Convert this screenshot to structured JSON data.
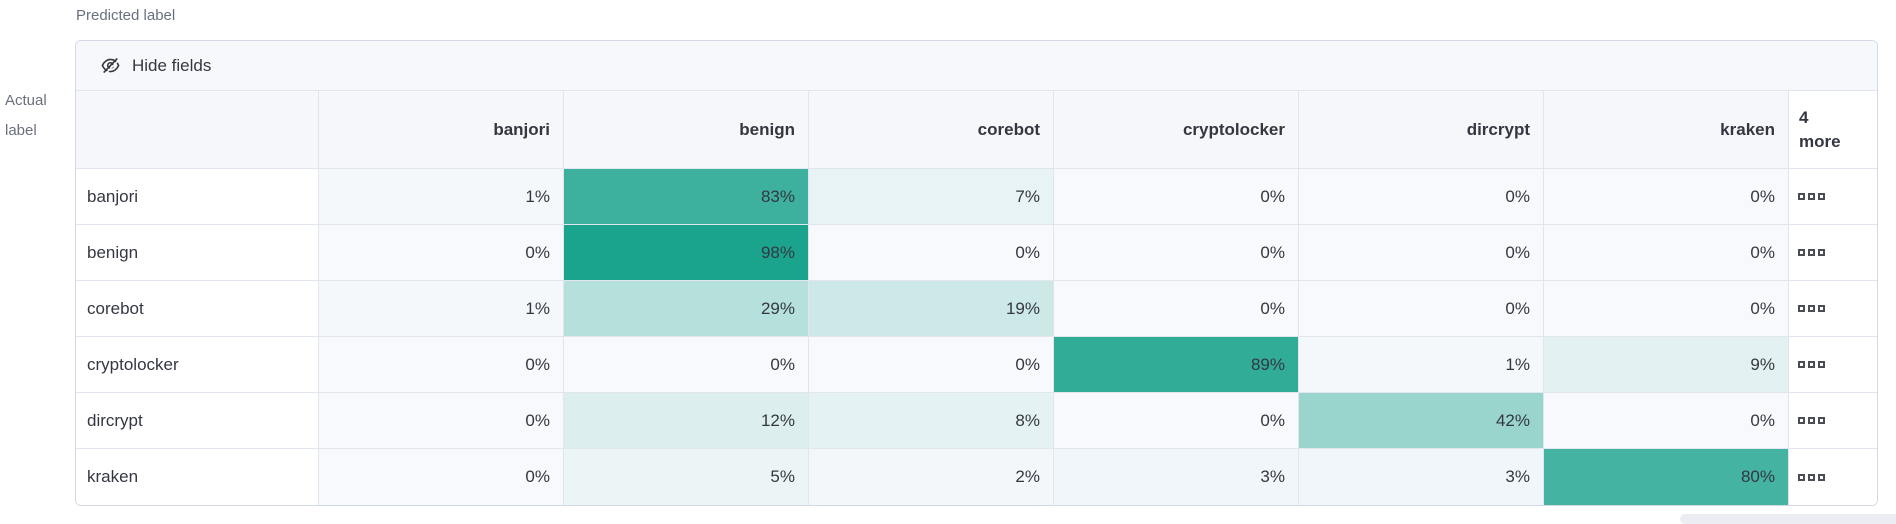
{
  "axis": {
    "predicted": "Predicted label",
    "actual_line1": "Actual",
    "actual_line2": "label"
  },
  "toolbar": {
    "hide_fields": "Hide fields",
    "hide_fields_icon": "eye-closed-icon"
  },
  "more_column": {
    "line1": "4",
    "line2": "more"
  },
  "more_cell_icon": "boxes-horizontal-icon",
  "colors": {
    "scale_min": "#f7f9fc",
    "scale_max": "#17a28b",
    "header_bg": "#f5f7fa",
    "control_bar_bg": "#f7f8fc",
    "border": "#d3dae6",
    "text": "#343741",
    "muted_text": "#69707d"
  },
  "chart_data": {
    "type": "heatmap",
    "title": "Confusion matrix",
    "xlabel": "Predicted label",
    "ylabel": "Actual label",
    "columns": [
      "banjori",
      "benign",
      "corebot",
      "cryptolocker",
      "dircrypt",
      "kraken"
    ],
    "hidden_columns_count": 4,
    "rows": [
      "banjori",
      "benign",
      "corebot",
      "cryptolocker",
      "dircrypt",
      "kraken"
    ],
    "cell_format": "percent",
    "values_percent": [
      [
        1,
        83,
        7,
        0,
        0,
        0
      ],
      [
        0,
        98,
        0,
        0,
        0,
        0
      ],
      [
        1,
        29,
        19,
        0,
        0,
        0
      ],
      [
        0,
        0,
        0,
        89,
        1,
        9
      ],
      [
        0,
        12,
        8,
        0,
        42,
        0
      ],
      [
        0,
        5,
        2,
        3,
        3,
        80
      ]
    ],
    "color_scale": {
      "min": "#f7f9fc",
      "max": "#17a28b"
    },
    "legend": "off",
    "grid": "on"
  }
}
